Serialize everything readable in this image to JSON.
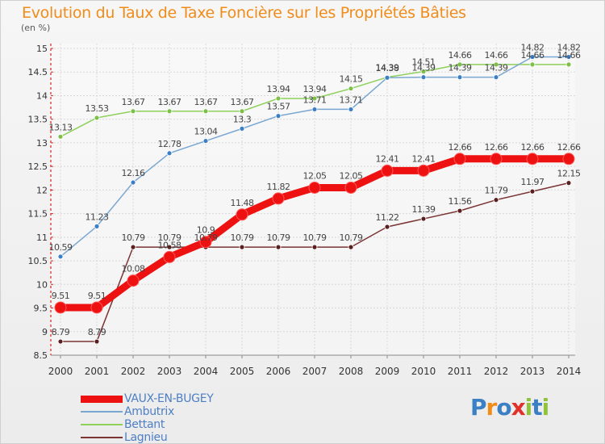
{
  "title": "Evolution du Taux de Taxe Foncière sur les Propriétés Bâties",
  "unit_label": "(en %)",
  "logo": {
    "text": "Proxiti",
    "colors": [
      "#3b7fc4",
      "#f08c1a",
      "#3b7fc4",
      "#e0322a",
      "#8fc43a",
      "#3b7fc4",
      "#8fc43a"
    ]
  },
  "chart_data": {
    "type": "line",
    "title": "Evolution du Taux de Taxe Foncière sur les Propriétés Bâties",
    "ylabel": "(en %)",
    "xlabel": "",
    "x": [
      "2000",
      "2001",
      "2002",
      "2003",
      "2004",
      "2005",
      "2006",
      "2007",
      "2008",
      "2009",
      "2010",
      "2011",
      "2012",
      "2013",
      "2014"
    ],
    "ylim": [
      8.5,
      15
    ],
    "yticks": [
      "8.5",
      "9",
      "9.5",
      "10",
      "10.5",
      "11",
      "11.5",
      "12",
      "12.5",
      "13",
      "13.5",
      "14",
      "14.5",
      "15"
    ],
    "grid": true,
    "legend_position": "bottom-left",
    "series": [
      {
        "name": "VAUX-EN-BUGEY",
        "color": "#ee1111",
        "marker": "#ee1111",
        "width": 9,
        "radius": 7,
        "values": [
          9.51,
          9.51,
          10.08,
          10.58,
          10.9,
          11.48,
          11.82,
          12.05,
          12.05,
          12.41,
          12.41,
          12.66,
          12.66,
          12.66,
          12.66
        ],
        "labels": [
          "9.51",
          "9.51",
          "10.08",
          "10.58",
          "10.9",
          "11.48",
          "11.82",
          "12.05",
          "12.05",
          "12.41",
          "12.41",
          "12.66",
          "12.66",
          "12.66",
          "12.66"
        ]
      },
      {
        "name": "Ambutrix",
        "color": "#7aa7d1",
        "marker": "#3b7fc4",
        "width": 1.5,
        "radius": 3,
        "values": [
          10.59,
          11.23,
          12.16,
          12.78,
          13.04,
          13.3,
          13.57,
          13.71,
          13.71,
          14.38,
          14.39,
          14.39,
          14.39,
          14.82,
          14.82
        ],
        "labels": [
          "10.59",
          "11.23",
          "12.16",
          "12.78",
          "13.04",
          "13.3",
          "13.57",
          "13.71",
          "13.71",
          "14.38",
          "14.39",
          "14.39",
          "14.39",
          "14.82",
          "14.82"
        ]
      },
      {
        "name": "Bettant",
        "color": "#8ed05a",
        "marker": "#7cc04a",
        "width": 1.5,
        "radius": 3,
        "values": [
          13.13,
          13.53,
          13.67,
          13.67,
          13.67,
          13.67,
          13.94,
          13.94,
          14.15,
          14.39,
          14.51,
          14.66,
          14.66,
          14.66,
          14.66
        ],
        "labels": [
          "13.13",
          "13.53",
          "13.67",
          "13.67",
          "13.67",
          "13.67",
          "13.94",
          "13.94",
          "14.15",
          "14.39",
          "14.51",
          "14.66",
          "14.66",
          "14.66",
          "14.66"
        ]
      },
      {
        "name": "Lagnieu",
        "color": "#7a3434",
        "marker": "#5a1f1f",
        "width": 1.5,
        "radius": 3,
        "values": [
          8.79,
          8.79,
          10.79,
          10.79,
          10.79,
          10.79,
          10.79,
          10.79,
          10.79,
          11.22,
          11.39,
          11.56,
          11.79,
          11.97,
          12.15
        ],
        "labels": [
          "8.79",
          "8.79",
          "10.79",
          "10.79",
          "10.79",
          "10.79",
          "10.79",
          "10.79",
          "10.79",
          "11.22",
          "11.39",
          "11.56",
          "11.79",
          "11.97",
          "12.15"
        ]
      }
    ]
  }
}
